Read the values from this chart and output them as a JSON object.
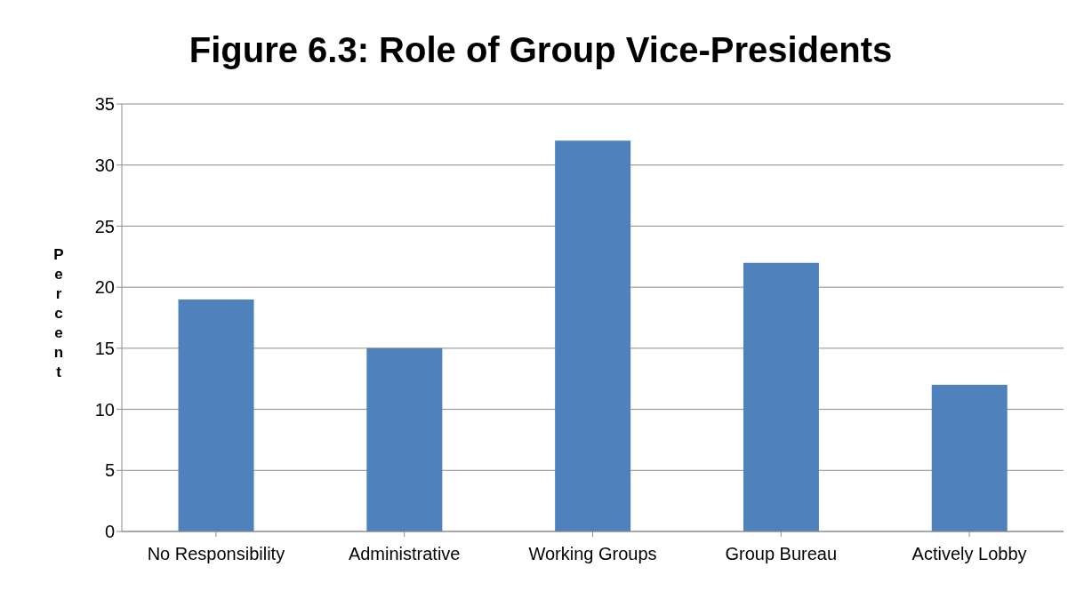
{
  "chart_data": {
    "type": "bar",
    "title": "Figure 6.3: Role of Group Vice-Presidents",
    "ylabel": "Percent",
    "categories": [
      "No Responsibility",
      "Administrative",
      "Working Groups",
      "Group Bureau",
      "Actively Lobby"
    ],
    "values": [
      19,
      15,
      32,
      22,
      12
    ],
    "color": "#4f81bd",
    "ylim": [
      0,
      35
    ],
    "yticks": [
      0,
      5,
      10,
      15,
      20,
      25,
      30,
      35
    ],
    "grid": "y",
    "legend": false
  }
}
